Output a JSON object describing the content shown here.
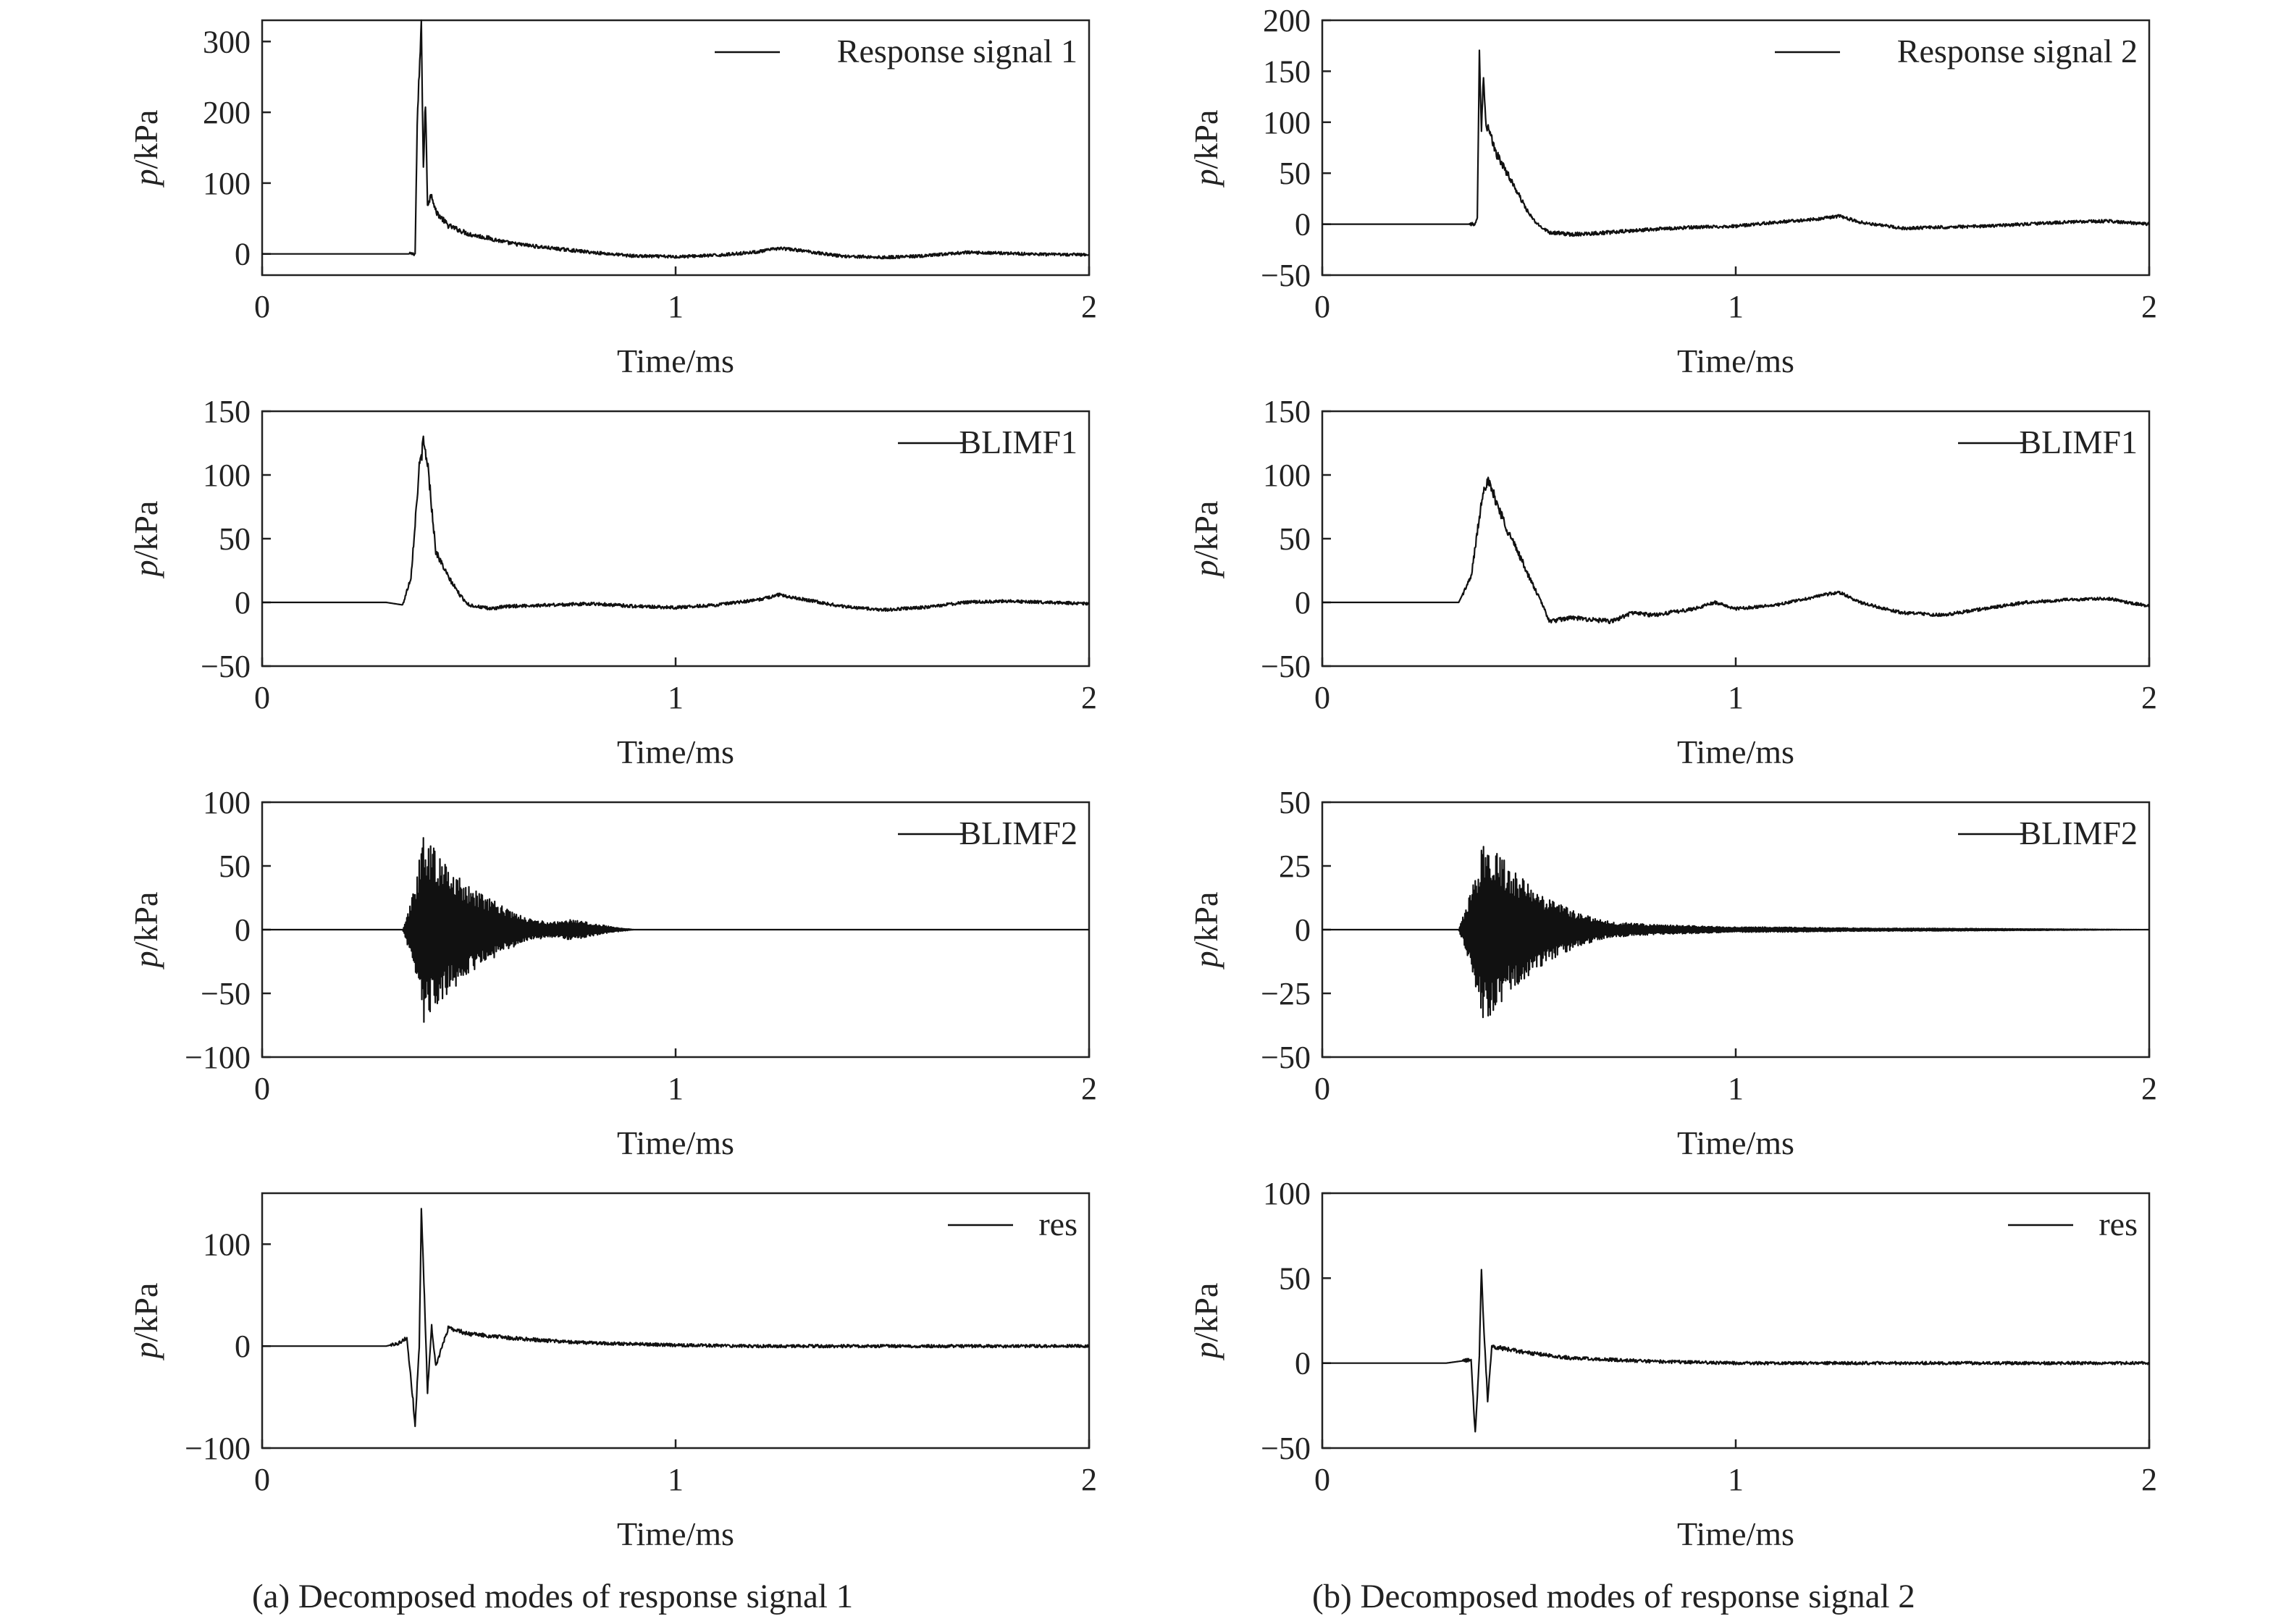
{
  "figure": {
    "caption_a": "(a) Decomposed modes of response signal 1",
    "caption_b": "(b) Decomposed modes of response signal 2"
  },
  "colors": {
    "line": "#111111",
    "axis": "#222222",
    "background": "#ffffff"
  },
  "chart_data": [
    {
      "type": "line",
      "panel": "a1",
      "legend": "Response signal 1",
      "legend_position": "top-right",
      "xlabel": "Time/ms",
      "ylabel": "p/kPa",
      "xlim": [
        0,
        2
      ],
      "ylim": [
        -30,
        330
      ],
      "xticks": [
        0,
        1,
        2
      ],
      "xtick_labels": [
        "0",
        "1",
        "2"
      ],
      "yticks": [
        0,
        100,
        200,
        300
      ],
      "ytick_labels": [
        "0",
        "100",
        "200",
        "300"
      ],
      "series": [
        {
          "name": "Response signal 1",
          "x": [
            0,
            0.37,
            0.375,
            0.385,
            0.39,
            0.395,
            0.4,
            0.41,
            0.42,
            0.45,
            0.5,
            0.55,
            0.6,
            0.7,
            0.8,
            0.9,
            1.0,
            1.1,
            1.2,
            1.25,
            1.3,
            1.4,
            1.5,
            1.6,
            1.7,
            1.8,
            1.9,
            2.0
          ],
          "y": [
            0,
            0,
            180,
            325,
            120,
            215,
            70,
            85,
            60,
            40,
            28,
            22,
            15,
            8,
            2,
            -3,
            -4,
            -2,
            3,
            8,
            5,
            -3,
            -5,
            -3,
            2,
            1,
            -1,
            -1
          ]
        }
      ]
    },
    {
      "type": "line",
      "panel": "b1",
      "legend": "Response signal 2",
      "legend_position": "top-right",
      "xlabel": "Time/ms",
      "ylabel": "p/kPa",
      "xlim": [
        0,
        2
      ],
      "ylim": [
        -50,
        200
      ],
      "xticks": [
        0,
        1,
        2
      ],
      "xtick_labels": [
        "0",
        "1",
        "2"
      ],
      "yticks": [
        -50,
        0,
        50,
        100,
        150,
        200
      ],
      "ytick_labels": [
        "−50",
        "0",
        "50",
        "100",
        "150",
        "200"
      ],
      "series": [
        {
          "name": "Response signal 2",
          "x": [
            0,
            0.37,
            0.375,
            0.38,
            0.385,
            0.39,
            0.395,
            0.4,
            0.42,
            0.45,
            0.48,
            0.5,
            0.52,
            0.55,
            0.6,
            0.7,
            0.8,
            0.9,
            1.0,
            1.1,
            1.2,
            1.25,
            1.3,
            1.4,
            1.5,
            1.6,
            1.7,
            1.8,
            1.9,
            2.0
          ],
          "y": [
            0,
            0,
            5,
            175,
            90,
            150,
            100,
            95,
            70,
            48,
            25,
            10,
            0,
            -8,
            -10,
            -8,
            -5,
            -3,
            -2,
            2,
            5,
            8,
            2,
            -4,
            -3,
            -2,
            0,
            2,
            3,
            0
          ]
        }
      ]
    },
    {
      "type": "line",
      "panel": "a2",
      "legend": "BLIMF1",
      "legend_position": "top-right",
      "xlabel": "Time/ms",
      "ylabel": "p/kPa",
      "xlim": [
        0,
        2
      ],
      "ylim": [
        -50,
        150
      ],
      "xticks": [
        0,
        1,
        2
      ],
      "xtick_labels": [
        "0",
        "1",
        "2"
      ],
      "yticks": [
        -50,
        0,
        50,
        100,
        150
      ],
      "ytick_labels": [
        "−50",
        "0",
        "50",
        "100",
        "150"
      ],
      "series": [
        {
          "name": "BLIMF1",
          "x": [
            0,
            0.3,
            0.34,
            0.36,
            0.38,
            0.39,
            0.4,
            0.42,
            0.45,
            0.48,
            0.5,
            0.55,
            0.6,
            0.7,
            0.8,
            0.9,
            1.0,
            1.1,
            1.2,
            1.25,
            1.3,
            1.4,
            1.5,
            1.6,
            1.7,
            1.8,
            1.9,
            2.0
          ],
          "y": [
            0,
            0,
            -2,
            20,
            105,
            125,
            110,
            40,
            20,
            5,
            -2,
            -5,
            -3,
            -2,
            -1,
            -3,
            -4,
            -2,
            2,
            6,
            3,
            -3,
            -6,
            -4,
            0,
            1,
            0,
            -1
          ]
        }
      ]
    },
    {
      "type": "line",
      "panel": "b2",
      "legend": "BLIMF1",
      "legend_position": "top-right",
      "xlabel": "Time/ms",
      "ylabel": "p/kPa",
      "xlim": [
        0,
        2
      ],
      "ylim": [
        -50,
        150
      ],
      "xticks": [
        0,
        1,
        2
      ],
      "xtick_labels": [
        "0",
        "1",
        "2"
      ],
      "yticks": [
        -50,
        0,
        50,
        100,
        150
      ],
      "ytick_labels": [
        "−50",
        "0",
        "50",
        "100",
        "150"
      ],
      "series": [
        {
          "name": "BLIMF1",
          "x": [
            0,
            0.3,
            0.33,
            0.36,
            0.39,
            0.4,
            0.42,
            0.45,
            0.48,
            0.5,
            0.53,
            0.55,
            0.6,
            0.7,
            0.75,
            0.8,
            0.9,
            0.95,
            1.0,
            1.1,
            1.2,
            1.25,
            1.3,
            1.4,
            1.5,
            1.6,
            1.7,
            1.8,
            1.9,
            2.0
          ],
          "y": [
            0,
            0,
            0,
            20,
            90,
            95,
            80,
            55,
            35,
            20,
            0,
            -15,
            -12,
            -15,
            -8,
            -10,
            -5,
            0,
            -5,
            -2,
            5,
            8,
            0,
            -8,
            -10,
            -5,
            0,
            2,
            3,
            -3
          ]
        }
      ]
    },
    {
      "type": "line",
      "panel": "a3",
      "legend": "BLIMF2",
      "legend_position": "top-right",
      "xlabel": "Time/ms",
      "ylabel": "p/kPa",
      "xlim": [
        0,
        2
      ],
      "ylim": [
        -100,
        100
      ],
      "xticks": [
        0,
        1,
        2
      ],
      "xtick_labels": [
        "0",
        "1",
        "2"
      ],
      "yticks": [
        -100,
        -50,
        0,
        50,
        100
      ],
      "ytick_labels": [
        "−100",
        "−50",
        "0",
        "50",
        "100"
      ],
      "series": [
        {
          "name": "BLIMF2",
          "x": [
            0,
            0.34,
            0.37,
            0.39,
            0.42,
            0.45,
            0.5,
            0.55,
            0.6,
            0.65,
            0.7,
            0.75,
            0.8,
            0.85,
            0.9,
            1.0,
            2.0
          ],
          "y": [
            0,
            0,
            35,
            75,
            62,
            50,
            35,
            25,
            15,
            8,
            6,
            8,
            5,
            2,
            0,
            0,
            0
          ]
        }
      ]
    },
    {
      "type": "line",
      "panel": "b3",
      "legend": "BLIMF2",
      "legend_position": "top-right",
      "xlabel": "Time/ms",
      "ylabel": "p/kPa",
      "xlim": [
        0,
        2
      ],
      "ylim": [
        -50,
        50
      ],
      "xticks": [
        0,
        1,
        2
      ],
      "xtick_labels": [
        "0",
        "1",
        "2"
      ],
      "yticks": [
        -50,
        -25,
        0,
        25,
        50
      ],
      "ytick_labels": [
        "−50",
        "−25",
        "0",
        "25",
        "50"
      ],
      "series": [
        {
          "name": "BLIMF2",
          "x": [
            0,
            0.33,
            0.36,
            0.39,
            0.42,
            0.45,
            0.5,
            0.55,
            0.6,
            0.65,
            0.7,
            0.8,
            0.9,
            1.0,
            1.1,
            1.2,
            1.3,
            1.5,
            2.0
          ],
          "y": [
            0,
            0,
            15,
            36,
            32,
            25,
            18,
            12,
            8,
            5,
            3,
            2,
            1.5,
            1,
            1,
            0.8,
            0.6,
            0.5,
            0
          ]
        }
      ]
    },
    {
      "type": "line",
      "panel": "a4",
      "legend": "res",
      "legend_position": "top-right",
      "xlabel": "Time/ms",
      "ylabel": "p/kPa",
      "xlim": [
        0,
        2
      ],
      "ylim": [
        -100,
        150
      ],
      "xticks": [
        0,
        1,
        2
      ],
      "xtick_labels": [
        "0",
        "1",
        "2"
      ],
      "yticks": [
        -100,
        0,
        100
      ],
      "ytick_labels": [
        "−100",
        "0",
        "100"
      ],
      "series": [
        {
          "name": "res",
          "x": [
            0,
            0.3,
            0.33,
            0.35,
            0.37,
            0.38,
            0.385,
            0.39,
            0.4,
            0.41,
            0.42,
            0.45,
            0.5,
            0.6,
            0.7,
            0.8,
            0.9,
            1.0,
            1.2,
            1.5,
            1.8,
            2.0
          ],
          "y": [
            0,
            0,
            3,
            8,
            -75,
            0,
            130,
            80,
            -45,
            20,
            -20,
            18,
            12,
            8,
            5,
            3,
            2,
            1,
            0,
            0,
            0,
            0
          ]
        }
      ]
    },
    {
      "type": "line",
      "panel": "b4",
      "legend": "res",
      "legend_position": "top-right",
      "xlabel": "Time/ms",
      "ylabel": "p/kPa",
      "xlim": [
        0,
        2
      ],
      "ylim": [
        -50,
        100
      ],
      "xticks": [
        0,
        1,
        2
      ],
      "xtick_labels": [
        "0",
        "1",
        "2"
      ],
      "yticks": [
        -50,
        0,
        50,
        100
      ],
      "ytick_labels": [
        "−50",
        "0",
        "50",
        "100"
      ],
      "series": [
        {
          "name": "res",
          "x": [
            0,
            0.3,
            0.36,
            0.37,
            0.38,
            0.385,
            0.39,
            0.4,
            0.41,
            0.45,
            0.5,
            0.6,
            0.7,
            0.8,
            1.0,
            1.5,
            2.0
          ],
          "y": [
            0,
            0,
            2,
            -42,
            5,
            58,
            25,
            -22,
            10,
            8,
            6,
            3,
            2,
            1,
            0,
            0,
            0
          ]
        }
      ]
    }
  ]
}
